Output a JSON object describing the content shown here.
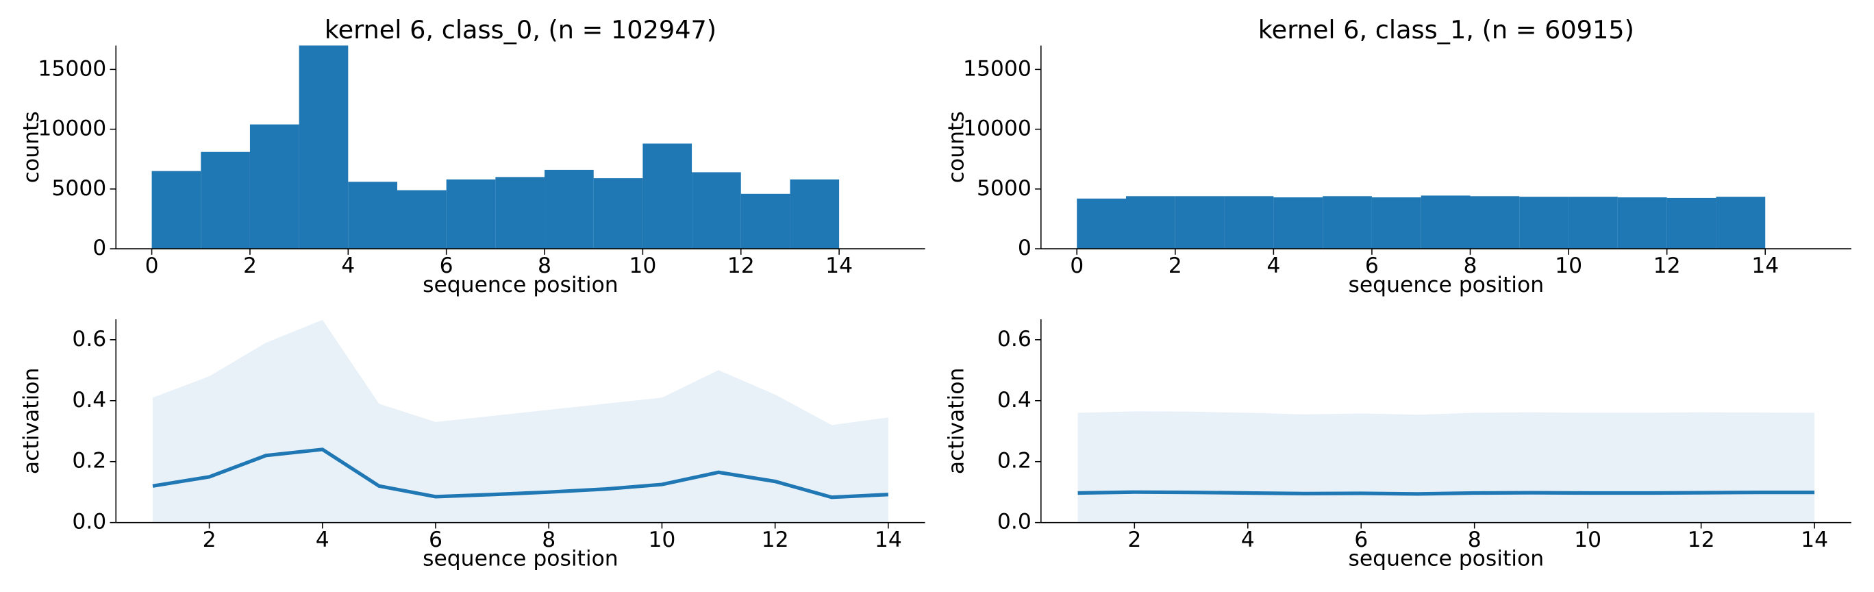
{
  "chart_data": [
    {
      "type": "histogram",
      "title": "kernel 6, class_0, (n = 102947)",
      "xlabel": "sequence position",
      "ylabel": "counts",
      "bins": [
        0,
        1,
        2,
        3,
        4,
        5,
        6,
        7,
        8,
        9,
        10,
        11,
        12,
        13,
        14
      ],
      "values": [
        6500,
        8100,
        10400,
        17000,
        5600,
        4900,
        5800,
        6000,
        6600,
        5900,
        8800,
        6400,
        4600,
        5800
      ],
      "color": "#1f77b4",
      "xlim": [
        -0.73,
        15.75
      ],
      "ylim": [
        0,
        17000
      ],
      "xticks": [
        0,
        2,
        4,
        6,
        8,
        10,
        12,
        14
      ],
      "yticks": [
        0,
        5000,
        10000,
        15000
      ]
    },
    {
      "type": "histogram",
      "title": "kernel 6, class_1, (n = 60915)",
      "xlabel": "sequence position",
      "ylabel": "counts",
      "bins": [
        0,
        1,
        2,
        3,
        4,
        5,
        6,
        7,
        8,
        9,
        10,
        11,
        12,
        13,
        14
      ],
      "values": [
        4200,
        4400,
        4400,
        4400,
        4300,
        4400,
        4300,
        4450,
        4400,
        4350,
        4350,
        4300,
        4250,
        4350
      ],
      "color": "#1f77b4",
      "xlim": [
        -0.73,
        15.75
      ],
      "ylim": [
        0,
        17000
      ],
      "xticks": [
        0,
        2,
        4,
        6,
        8,
        10,
        12,
        14
      ],
      "yticks": [
        0,
        5000,
        10000,
        15000
      ]
    },
    {
      "type": "line",
      "xlabel": "sequence position",
      "ylabel": "activation",
      "x": [
        1,
        2,
        3,
        4,
        5,
        6,
        7,
        8,
        9,
        10,
        11,
        12,
        13,
        14
      ],
      "series": [
        {
          "color": "#1f77b4",
          "values": [
            0.12,
            0.15,
            0.22,
            0.24,
            0.12,
            0.085,
            0.092,
            0.1,
            0.11,
            0.125,
            0.165,
            0.135,
            0.083,
            0.092
          ]
        }
      ],
      "band": {
        "color": "#e8f0f8",
        "lower": [
          0,
          0,
          0,
          0,
          0,
          0,
          0,
          0,
          0,
          0,
          0,
          0,
          0,
          0
        ],
        "upper": [
          0.41,
          0.48,
          0.59,
          0.665,
          0.39,
          0.33,
          0.35,
          0.37,
          0.39,
          0.41,
          0.5,
          0.42,
          0.32,
          0.345
        ]
      },
      "xlim": [
        0.35,
        14.65
      ],
      "ylim": [
        0,
        0.667
      ],
      "xticks": [
        2,
        4,
        6,
        8,
        10,
        12,
        14
      ],
      "yticks": [
        {
          "value": 0,
          "label": "0.0"
        },
        0.2,
        0.4,
        0.6
      ]
    },
    {
      "type": "line",
      "xlabel": "sequence position",
      "ylabel": "activation",
      "x": [
        1,
        2,
        3,
        4,
        5,
        6,
        7,
        8,
        9,
        10,
        11,
        12,
        13,
        14
      ],
      "series": [
        {
          "color": "#1f77b4",
          "values": [
            0.097,
            0.1,
            0.099,
            0.097,
            0.095,
            0.096,
            0.094,
            0.097,
            0.098,
            0.097,
            0.097,
            0.098,
            0.099,
            0.099
          ]
        }
      ],
      "band": {
        "color": "#e8f0f8",
        "lower": [
          0,
          0,
          0,
          0,
          0,
          0,
          0,
          0,
          0,
          0,
          0,
          0,
          0,
          0
        ],
        "upper": [
          0.36,
          0.365,
          0.364,
          0.36,
          0.355,
          0.358,
          0.354,
          0.36,
          0.362,
          0.36,
          0.36,
          0.362,
          0.361,
          0.36
        ]
      },
      "xlim": [
        0.35,
        14.65
      ],
      "ylim": [
        0,
        0.667
      ],
      "xticks": [
        2,
        4,
        6,
        8,
        10,
        12,
        14
      ],
      "yticks": [
        {
          "value": 0,
          "label": "0.0"
        },
        0.2,
        0.4,
        0.6
      ]
    }
  ]
}
